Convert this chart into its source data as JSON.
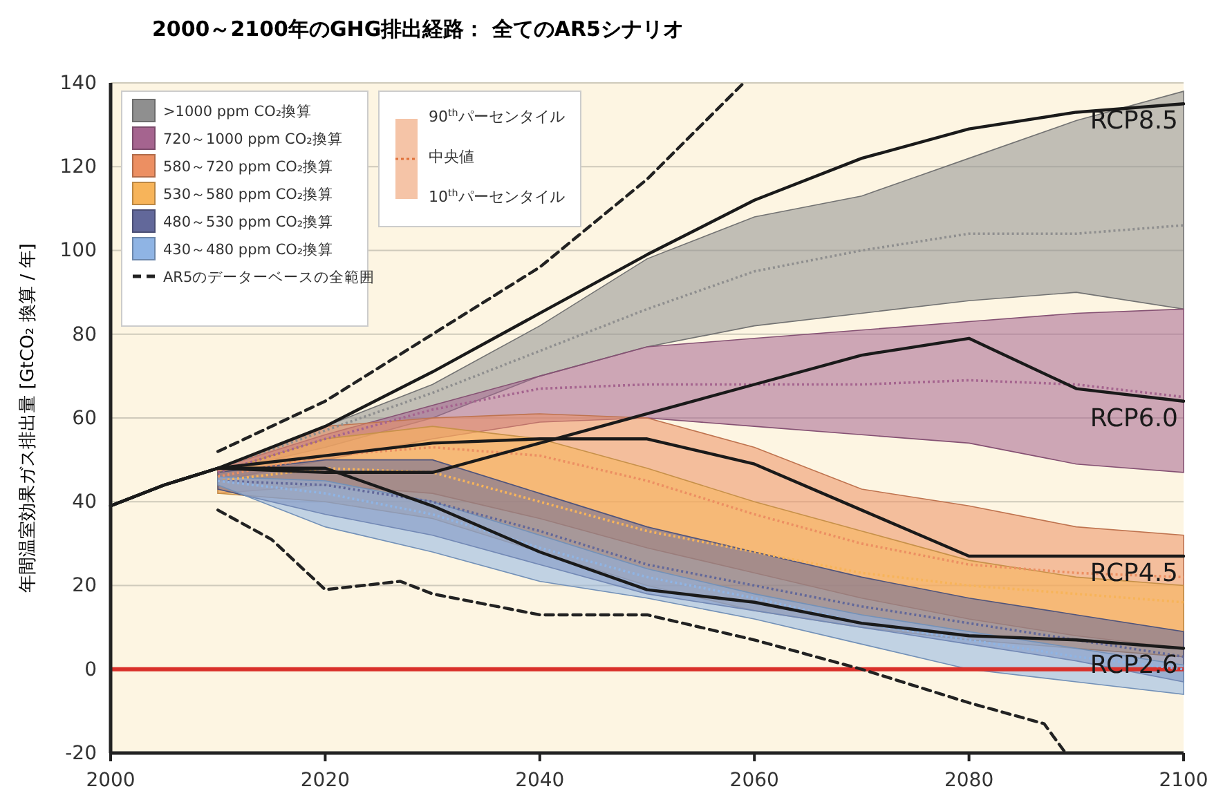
{
  "chart_data": {
    "type": "line",
    "title": "2000～2100年のGHG排出経路： 全てのAR5シナリオ",
    "ylabel": "年間温室効果ガス排出量 [GtCO₂ 換算 / 年]",
    "xlim": [
      2000,
      2100
    ],
    "xticks": [
      2000,
      2020,
      2040,
      2060,
      2080,
      2100
    ],
    "ylim": [
      -20,
      140
    ],
    "yticks": [
      -20,
      0,
      20,
      40,
      60,
      80,
      100,
      120,
      140
    ],
    "grid": "y",
    "legend": "top left",
    "annotations": [
      "90$^{th}$パーセンタイル",
      "中央値",
      "10$^{th}$パーセンタイル"
    ],
    "ref_lines": [
      {
        "axis": "y",
        "value": 0,
        "color": "#d9302a"
      }
    ],
    "series": [
      {
        "name": ">1000 ppm CO₂換算",
        "color": "#8f8f8f",
        "line_style": "dotted",
        "x": [
          2010,
          2020,
          2030,
          2040,
          2050,
          2060,
          2070,
          2080,
          2090,
          2100
        ],
        "values": [
          48,
          57,
          66,
          76,
          86,
          95,
          100,
          104,
          104,
          106
        ],
        "lower": [
          47,
          53,
          60,
          70,
          77,
          82,
          85,
          88,
          90,
          86
        ],
        "upper": [
          48,
          58,
          68,
          82,
          98,
          108,
          113,
          122,
          131,
          138
        ]
      },
      {
        "name": "720～1000 ppm CO₂換算",
        "color": "#a5648f",
        "line_style": "dotted",
        "x": [
          2010,
          2020,
          2030,
          2040,
          2050,
          2060,
          2070,
          2080,
          2090,
          2100
        ],
        "values": [
          47,
          55,
          62,
          67,
          68,
          68,
          68,
          69,
          68,
          65
        ],
        "lower": [
          45,
          50,
          55,
          59,
          60,
          58,
          56,
          54,
          49,
          47
        ],
        "upper": [
          48,
          56,
          63,
          70,
          77,
          79,
          81,
          83,
          85,
          86
        ]
      },
      {
        "name": "580～720 ppm CO₂換算",
        "color": "#ec8f62",
        "line_style": "dotted",
        "x": [
          2010,
          2020,
          2030,
          2040,
          2050,
          2060,
          2070,
          2080,
          2090,
          2100
        ],
        "values": [
          46,
          51,
          53,
          51,
          45,
          37,
          30,
          25,
          23,
          22
        ],
        "lower": [
          42,
          44,
          42,
          36,
          29,
          23,
          17,
          12,
          8,
          5
        ],
        "upper": [
          48,
          58,
          60,
          61,
          60,
          53,
          43,
          39,
          34,
          32
        ]
      },
      {
        "name": "530～580 ppm CO₂換算",
        "color": "#f7b45a",
        "line_style": "dotted",
        "x": [
          2010,
          2020,
          2030,
          2040,
          2050,
          2060,
          2070,
          2080,
          2090,
          2100
        ],
        "values": [
          45,
          48,
          47,
          40,
          33,
          28,
          23,
          20,
          18,
          16
        ],
        "lower": [
          42,
          40,
          36,
          28,
          20,
          14,
          10,
          7,
          5,
          3
        ],
        "upper": [
          47,
          55,
          58,
          55,
          48,
          40,
          33,
          26,
          22,
          20
        ]
      },
      {
        "name": "480～530 ppm CO₂換算",
        "color": "#62689a",
        "line_style": "dotted",
        "x": [
          2010,
          2020,
          2030,
          2040,
          2050,
          2060,
          2070,
          2080,
          2090,
          2100
        ],
        "values": [
          45,
          44,
          40,
          33,
          25,
          20,
          15,
          11,
          7,
          3
        ],
        "lower": [
          43,
          37,
          32,
          25,
          18,
          14,
          10,
          6,
          2,
          -3
        ],
        "upper": [
          47,
          50,
          50,
          42,
          34,
          28,
          22,
          17,
          13,
          9
        ]
      },
      {
        "name": "430～480 ppm CO₂換算",
        "color": "#8fb4e4",
        "line_style": "dotted",
        "x": [
          2010,
          2020,
          2030,
          2040,
          2050,
          2060,
          2070,
          2080,
          2090,
          2100
        ],
        "values": [
          45,
          42,
          37,
          29,
          22,
          17,
          11,
          7,
          3,
          0
        ],
        "lower": [
          44,
          34,
          28,
          21,
          17,
          12,
          6,
          0,
          -3,
          -6
        ],
        "upper": [
          46,
          45,
          40,
          32,
          24,
          18,
          13,
          9,
          5,
          1
        ]
      },
      {
        "name": "AR5のデーターベースの全範囲",
        "color": "#222222",
        "line_style": "dashed",
        "x": [
          2010,
          2020,
          2030,
          2040,
          2050,
          2059
        ],
        "values": [
          52,
          64,
          80,
          96,
          117,
          140
        ]
      },
      {
        "color": "#222222",
        "line_style": "dashed",
        "x": [
          2010,
          2015,
          2020,
          2027,
          2030,
          2040,
          2050,
          2060,
          2070,
          2080,
          2087,
          2089
        ],
        "values": [
          38,
          31,
          19,
          21,
          18,
          13,
          13,
          7,
          0,
          -8,
          -13,
          -20
        ]
      },
      {
        "name": "RCP8.5",
        "color": "#1a1a1a",
        "line_style": "solid",
        "x": [
          2000,
          2005,
          2010,
          2020,
          2030,
          2040,
          2050,
          2060,
          2070,
          2080,
          2090,
          2100
        ],
        "values": [
          39,
          44,
          48,
          58,
          71,
          85,
          99,
          112,
          122,
          129,
          133,
          135
        ]
      },
      {
        "name": "RCP6.0",
        "color": "#1a1a1a",
        "line_style": "solid",
        "x": [
          2000,
          2005,
          2010,
          2020,
          2030,
          2040,
          2050,
          2060,
          2070,
          2080,
          2090,
          2100
        ],
        "values": [
          39,
          44,
          48,
          47,
          47,
          54,
          61,
          68,
          75,
          79,
          67,
          64
        ]
      },
      {
        "name": "RCP4.5",
        "color": "#1a1a1a",
        "line_style": "solid",
        "x": [
          2000,
          2005,
          2010,
          2020,
          2030,
          2040,
          2050,
          2060,
          2070,
          2080,
          2090,
          2100
        ],
        "values": [
          39,
          44,
          48,
          51,
          54,
          55,
          55,
          49,
          38,
          27,
          27,
          27
        ]
      },
      {
        "name": "RCP2.6",
        "color": "#1a1a1a",
        "line_style": "solid",
        "x": [
          2000,
          2005,
          2010,
          2020,
          2030,
          2040,
          2050,
          2060,
          2070,
          2080,
          2090,
          2100
        ],
        "values": [
          39,
          44,
          48,
          48,
          39,
          28,
          19,
          16,
          11,
          8,
          7,
          5
        ]
      }
    ]
  }
}
